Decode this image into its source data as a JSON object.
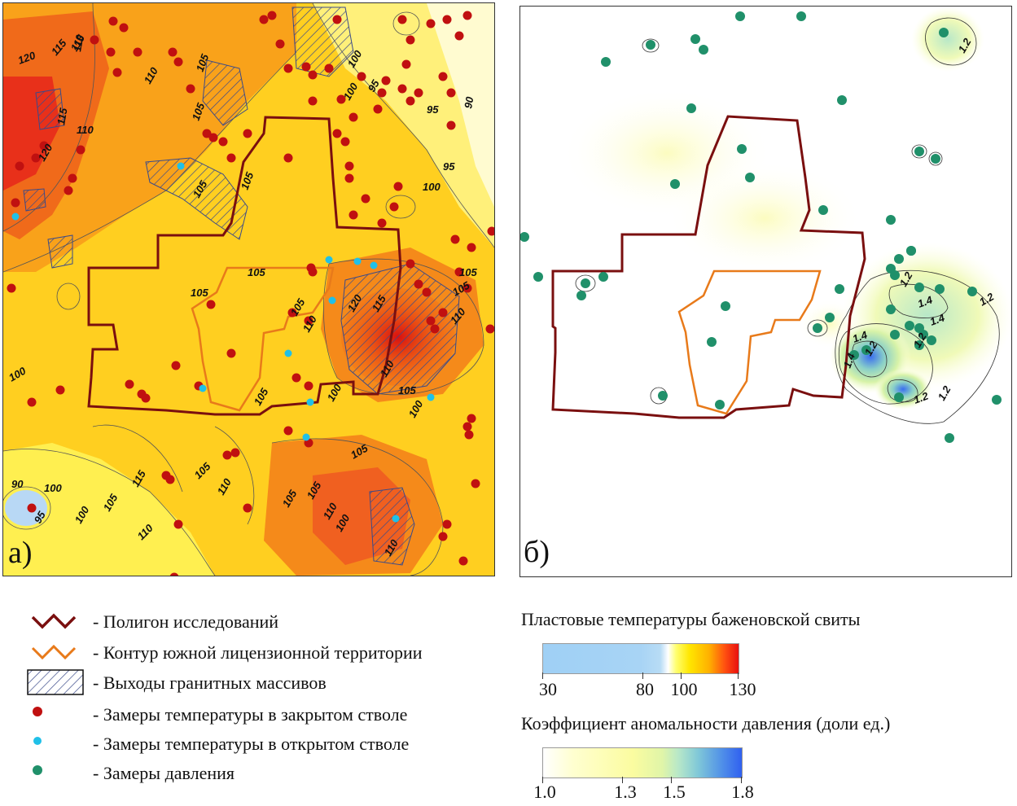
{
  "panel_a": {
    "letter": "а)",
    "contour_labels": [
      "120",
      "120",
      "115",
      "115",
      "110",
      "110",
      "105",
      "105",
      "105",
      "105",
      "105",
      "100",
      "100",
      "95",
      "95",
      "95",
      "90",
      "115",
      "110",
      "105",
      "100",
      "100",
      "105",
      "105",
      "110",
      "120",
      "115",
      "110",
      "105",
      "100",
      "105",
      "110",
      "105",
      "100",
      "90",
      "95",
      "100",
      "100",
      "105",
      "110",
      "115",
      "105",
      "110",
      "105",
      "105",
      "100",
      "110",
      "110",
      "105"
    ]
  },
  "panel_b": {
    "letter": "б)",
    "contour_labels": [
      "1.2",
      "1.2",
      "1.2",
      "1.4",
      "1.4",
      "1.4",
      "1.2",
      "1.2",
      "1.4",
      "1.2",
      "1.2"
    ]
  },
  "legend": {
    "items": [
      {
        "label": "- Полигон исследований"
      },
      {
        "label": "- Контур южной лицензионной территории"
      },
      {
        "label": "- Выходы гранитных массивов"
      },
      {
        "label": "- Замеры температуры в закрытом стволе"
      },
      {
        "label": "- Замеры температуры в открытом стволе"
      },
      {
        "label": "- Замеры давления"
      }
    ]
  },
  "scales": {
    "temperature": {
      "title": "Пластовые температуры баженовской свиты",
      "ticks": [
        "30",
        "80",
        "100",
        "130"
      ],
      "colors": {
        "low": "#9fd0f5",
        "mid": "#ffff40",
        "high": "#e81010"
      }
    },
    "pressure": {
      "title": "Коэффициент аномальности давления (доли ед.)",
      "ticks": [
        "1.0",
        "1.3",
        "1.5",
        "1.8"
      ],
      "colors": {
        "low": "#ffffff",
        "mid": "#c8f0b0",
        "high": "#3060f0"
      }
    }
  },
  "colors": {
    "polygon": "#7a0f0f",
    "license_contour": "#e87a1a",
    "closed_well": "#c01010",
    "open_well": "#20c0e8",
    "pressure_well": "#20906a"
  }
}
